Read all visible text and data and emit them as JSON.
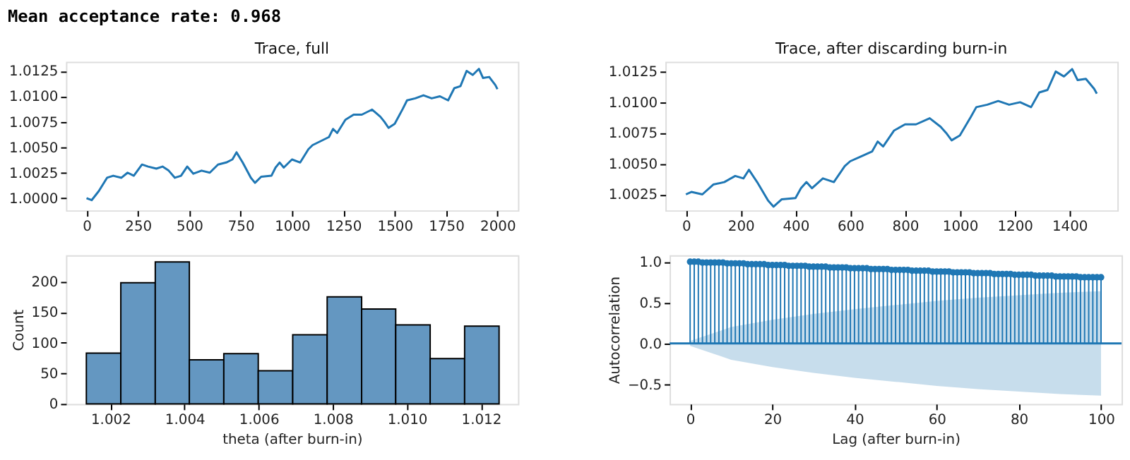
{
  "chart_data": [
    {
      "type": "line",
      "title": "Trace, full",
      "annotations": [
        "Mean acceptance rate:  0.968"
      ],
      "grid": false,
      "xlim": [
        -100,
        2100
      ],
      "xticks": [
        0,
        250,
        500,
        750,
        1000,
        1250,
        1500,
        1750,
        2000
      ],
      "ylim": [
        0.9988,
        1.0134
      ],
      "yticks": [
        {
          "value": 1.0,
          "label": "1.0000"
        },
        1.0025,
        {
          "value": 1.005,
          "label": "1.0050"
        },
        1.0075,
        {
          "value": 1.01,
          "label": "1.0100"
        },
        1.0125
      ],
      "x": [
        0,
        25,
        60,
        100,
        130,
        170,
        200,
        230,
        270,
        300,
        340,
        370,
        400,
        430,
        460,
        490,
        520,
        560,
        600,
        640,
        680,
        710,
        730,
        760,
        800,
        820,
        850,
        900,
        920,
        940,
        960,
        1000,
        1040,
        1080,
        1100,
        1140,
        1180,
        1200,
        1220,
        1260,
        1300,
        1340,
        1390,
        1430,
        1450,
        1470,
        1500,
        1540,
        1560,
        1600,
        1640,
        1680,
        1720,
        1760,
        1790,
        1820,
        1850,
        1880,
        1910,
        1930,
        1960,
        1990,
        2000
      ],
      "series": [
        {
          "color": "#1f77b4",
          "line_style": "solid",
          "values": [
            1.0,
            0.9998,
            1.0007,
            1.002,
            1.0022,
            1.002,
            1.0025,
            1.0022,
            1.0033,
            1.0031,
            1.0029,
            1.0031,
            1.0027,
            1.002,
            1.0022,
            1.0031,
            1.0024,
            1.0027,
            1.0025,
            1.0033,
            1.0035,
            1.0038,
            1.0045,
            1.0035,
            1.002,
            1.0015,
            1.0021,
            1.0022,
            1.003,
            1.0035,
            1.003,
            1.0038,
            1.0035,
            1.0048,
            1.0052,
            1.0056,
            1.006,
            1.0068,
            1.0064,
            1.0077,
            1.0082,
            1.0082,
            1.0087,
            1.008,
            1.0075,
            1.0069,
            1.0073,
            1.0088,
            1.0096,
            1.0098,
            1.0101,
            1.0098,
            1.01,
            1.0096,
            1.0108,
            1.011,
            1.0125,
            1.0121,
            1.0127,
            1.0118,
            1.0119,
            1.0111,
            1.0107
          ]
        }
      ]
    },
    {
      "type": "line",
      "title": "Trace, after discarding burn-in",
      "grid": false,
      "xlim": [
        -75,
        1575
      ],
      "xticks": [
        0,
        200,
        400,
        600,
        800,
        1000,
        1200,
        1400
      ],
      "ylim": [
        1.0012,
        1.0133
      ],
      "yticks": [
        1.0025,
        {
          "value": 1.005,
          "label": "1.0050"
        },
        1.0075,
        {
          "value": 1.01,
          "label": "1.0100"
        },
        1.0125
      ],
      "x": [
        0,
        20,
        60,
        100,
        140,
        180,
        210,
        230,
        260,
        300,
        320,
        350,
        400,
        420,
        440,
        460,
        500,
        540,
        580,
        600,
        600,
        640,
        680,
        700,
        720,
        760,
        800,
        840,
        890,
        930,
        950,
        970,
        1000,
        1040,
        1060,
        1100,
        1140,
        1180,
        1220,
        1260,
        1290,
        1320,
        1350,
        1380,
        1410,
        1430,
        1460,
        1490,
        1500
      ],
      "series": [
        {
          "color": "#1f77b4",
          "line_style": "solid",
          "values": [
            1.0025,
            1.0027,
            1.0025,
            1.0033,
            1.0035,
            1.004,
            1.0038,
            1.0045,
            1.0035,
            1.002,
            1.0015,
            1.0021,
            1.0022,
            1.003,
            1.0035,
            1.003,
            1.0038,
            1.0035,
            1.0048,
            1.0052,
            1.0052,
            1.0056,
            1.006,
            1.0068,
            1.0064,
            1.0077,
            1.0082,
            1.0082,
            1.0087,
            1.008,
            1.0075,
            1.0069,
            1.0073,
            1.0088,
            1.0096,
            1.0098,
            1.0101,
            1.0098,
            1.01,
            1.0096,
            1.0108,
            1.011,
            1.0125,
            1.0121,
            1.0127,
            1.0118,
            1.0119,
            1.0111,
            1.0107
          ]
        }
      ]
    },
    {
      "type": "histogram",
      "xlabel": "theta (after burn-in)",
      "ylabel": "Count",
      "grid": false,
      "xlim": [
        1.0008,
        1.013
      ],
      "xticks": [
        1.002,
        1.004,
        1.006,
        1.008,
        {
          "value": 1.01,
          "label": "1.010"
        },
        1.012
      ],
      "ylim": [
        0,
        243
      ],
      "yticks": [
        0,
        50,
        100,
        150,
        200
      ],
      "bins": [
        1.00135,
        1.00228,
        1.00321,
        1.00413,
        1.00506,
        1.00599,
        1.00692,
        1.00785,
        1.00878,
        1.0097,
        1.01063,
        1.01156,
        1.01249
      ],
      "values": [
        83,
        198,
        232,
        72,
        82,
        54,
        113,
        175,
        155,
        129,
        74,
        127
      ],
      "color": "#6497c1"
    },
    {
      "type": "lollipop",
      "xlabel": "Lag (after burn-in)",
      "ylabel": "Autocorrelation",
      "grid": false,
      "xlim": [
        -5,
        105
      ],
      "xticks": [
        0,
        20,
        40,
        60,
        80,
        100
      ],
      "ylim": [
        -0.74,
        1.08
      ],
      "yticks": [
        {
          "value": -0.5,
          "label": "−0.5"
        },
        {
          "value": 0,
          "label": "0.0"
        },
        0.5,
        {
          "value": 1,
          "label": "1.0"
        }
      ],
      "series": [
        {
          "color": "#1f77b4",
          "marker": "circle",
          "x": [
            0,
            1,
            2,
            3,
            4,
            5,
            6,
            7,
            8,
            9,
            10,
            11,
            12,
            13,
            14,
            15,
            16,
            17,
            18,
            19,
            20,
            21,
            22,
            23,
            24,
            25,
            26,
            27,
            28,
            29,
            30,
            31,
            32,
            33,
            34,
            35,
            36,
            37,
            38,
            39,
            40,
            41,
            42,
            43,
            44,
            45,
            46,
            47,
            48,
            49,
            50,
            51,
            52,
            53,
            54,
            55,
            56,
            57,
            58,
            59,
            60,
            61,
            62,
            63,
            64,
            65,
            66,
            67,
            68,
            69,
            70,
            71,
            72,
            73,
            74,
            75,
            76,
            77,
            78,
            79,
            80,
            81,
            82,
            83,
            84,
            85,
            86,
            87,
            88,
            89,
            90,
            91,
            92,
            93,
            94,
            95,
            96,
            97,
            98,
            99,
            100
          ],
          "values": [
            1.0,
            1.0,
            1.0,
            0.99,
            0.99,
            0.99,
            0.99,
            0.99,
            0.99,
            0.98,
            0.98,
            0.98,
            0.98,
            0.98,
            0.97,
            0.97,
            0.97,
            0.97,
            0.97,
            0.96,
            0.96,
            0.96,
            0.96,
            0.96,
            0.95,
            0.95,
            0.95,
            0.95,
            0.95,
            0.94,
            0.94,
            0.94,
            0.94,
            0.94,
            0.93,
            0.93,
            0.93,
            0.93,
            0.93,
            0.92,
            0.92,
            0.92,
            0.92,
            0.92,
            0.91,
            0.91,
            0.91,
            0.91,
            0.91,
            0.9,
            0.9,
            0.9,
            0.9,
            0.9,
            0.89,
            0.89,
            0.89,
            0.89,
            0.89,
            0.88,
            0.88,
            0.88,
            0.88,
            0.88,
            0.87,
            0.87,
            0.87,
            0.87,
            0.87,
            0.86,
            0.86,
            0.86,
            0.86,
            0.86,
            0.85,
            0.85,
            0.85,
            0.85,
            0.85,
            0.84,
            0.84,
            0.84,
            0.84,
            0.84,
            0.83,
            0.83,
            0.83,
            0.83,
            0.83,
            0.82,
            0.82,
            0.82,
            0.82,
            0.82,
            0.82,
            0.81,
            0.81,
            0.81,
            0.81,
            0.81,
            0.81
          ]
        },
        {
          "type": "line",
          "color": "#1f77b4",
          "marker": "none",
          "x": [
            -5,
            0,
            10,
            20,
            30,
            40,
            50,
            60,
            70,
            80,
            90,
            100,
            105
          ],
          "values": [
            0,
            0,
            0,
            0,
            0,
            0,
            0,
            0,
            0,
            0,
            0,
            0,
            0
          ],
          "lower": [
            null,
            -0.03,
            -0.2,
            -0.29,
            -0.36,
            -0.42,
            -0.47,
            -0.52,
            -0.56,
            -0.59,
            -0.62,
            -0.64,
            null
          ],
          "upper": [
            null,
            0.03,
            0.2,
            0.29,
            0.36,
            0.42,
            0.47,
            0.52,
            0.56,
            0.59,
            0.62,
            0.64,
            null
          ]
        }
      ]
    }
  ]
}
